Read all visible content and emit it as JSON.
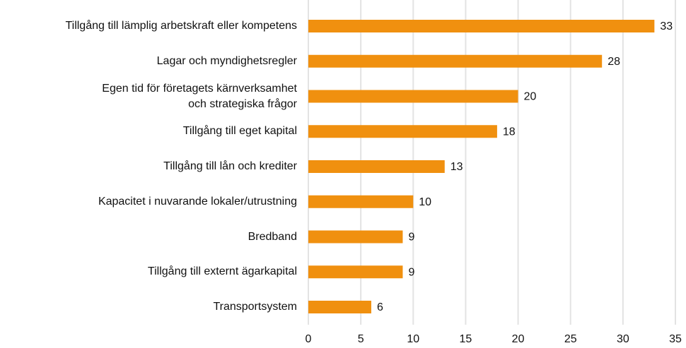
{
  "chart_data": {
    "type": "bar",
    "orientation": "horizontal",
    "categories": [
      "Tillgång till lämplig arbetskraft eller kompetens",
      "Lagar och myndighetsregler",
      "Egen tid för företagets kärnverksamhet\noch strategiska frågor",
      "Tillgång till eget kapital",
      "Tillgång till lån och krediter",
      "Kapacitet i nuvarande lokaler/utrustning",
      "Bredband",
      "Tillgång till externt ägarkapital",
      "Transportsystem"
    ],
    "values": [
      33,
      28,
      20,
      18,
      13,
      10,
      9,
      9,
      6
    ],
    "color": "#f0900f",
    "xlim": [
      0,
      35
    ],
    "xticks": [
      0,
      5,
      10,
      15,
      20,
      25,
      30,
      35
    ],
    "grid": true
  }
}
